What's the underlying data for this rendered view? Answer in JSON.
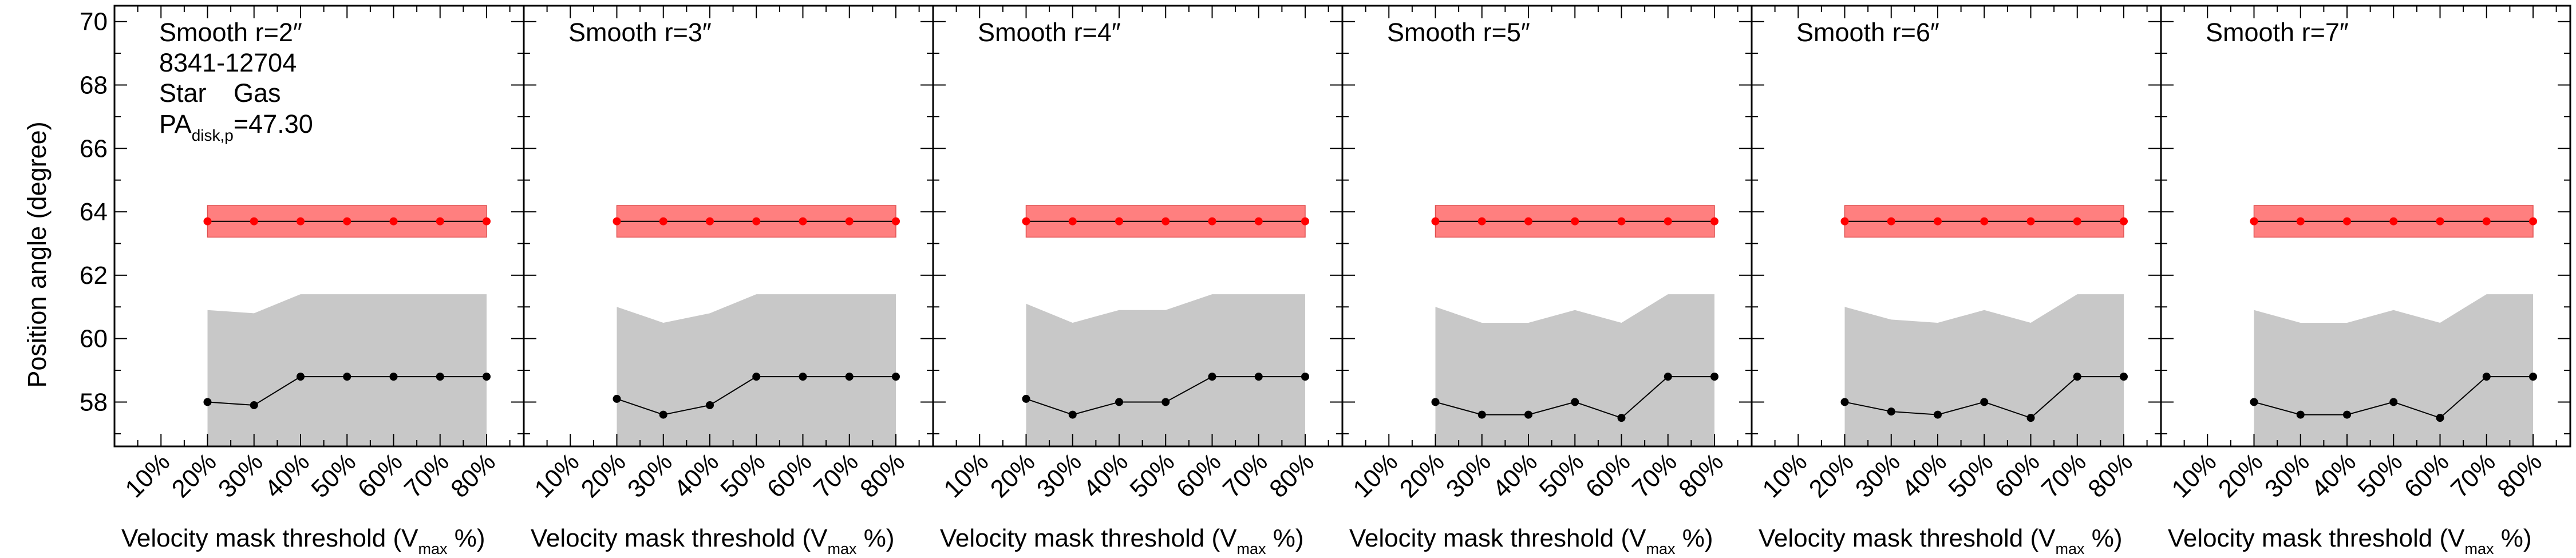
{
  "y_axis_title": "Position angle (degree)",
  "x_axis_title": {
    "prefix": "Velocity mask threshold (V",
    "subscript": "max",
    "suffix": " %)"
  },
  "galaxy_id": "8341-12704",
  "legend": {
    "star": "Star",
    "gas": "Gas"
  },
  "pa_disk": {
    "prefix": "PA",
    "subscript": "disk,p",
    "value": "=47.30"
  },
  "colors": {
    "star": "#000000",
    "gas": "#ff0000",
    "gas_band": "#ff7f7f",
    "star_band": "#c8c8c8",
    "frame": "#000000"
  },
  "chart_data": {
    "type": "line",
    "ylim": [
      56.6,
      70.5
    ],
    "y_ticks": [
      58,
      60,
      62,
      64,
      66,
      68,
      70
    ],
    "x_tick_labels": [
      "10%",
      "20%",
      "30%",
      "40%",
      "50%",
      "60%",
      "70%",
      "80%"
    ],
    "x_data": [
      20,
      30,
      40,
      50,
      60,
      70,
      80
    ],
    "panels": [
      {
        "label": "Smooth r=2″",
        "star": [
          58.0,
          57.9,
          58.8,
          58.8,
          58.8,
          58.8,
          58.8
        ],
        "star_band_upper": [
          60.9,
          60.8,
          61.4,
          61.4,
          61.4,
          61.4,
          61.4
        ],
        "gas": [
          63.7,
          63.7,
          63.7,
          63.7,
          63.7,
          63.7,
          63.7
        ],
        "gas_band": [
          63.2,
          64.2
        ]
      },
      {
        "label": "Smooth r=3″",
        "star": [
          58.1,
          57.6,
          57.9,
          58.8,
          58.8,
          58.8,
          58.8
        ],
        "star_band_upper": [
          61.0,
          60.5,
          60.8,
          61.4,
          61.4,
          61.4,
          61.4
        ],
        "gas": [
          63.7,
          63.7,
          63.7,
          63.7,
          63.7,
          63.7,
          63.7
        ],
        "gas_band": [
          63.2,
          64.2
        ]
      },
      {
        "label": "Smooth r=4″",
        "star": [
          58.1,
          57.6,
          58.0,
          58.0,
          58.8,
          58.8,
          58.8
        ],
        "star_band_upper": [
          61.1,
          60.5,
          60.9,
          60.9,
          61.4,
          61.4,
          61.4
        ],
        "gas": [
          63.7,
          63.7,
          63.7,
          63.7,
          63.7,
          63.7,
          63.7
        ],
        "gas_band": [
          63.2,
          64.2
        ]
      },
      {
        "label": "Smooth r=5″",
        "star": [
          58.0,
          57.6,
          57.6,
          58.0,
          57.5,
          58.8,
          58.8
        ],
        "star_band_upper": [
          61.0,
          60.5,
          60.5,
          60.9,
          60.5,
          61.4,
          61.4
        ],
        "gas": [
          63.7,
          63.7,
          63.7,
          63.7,
          63.7,
          63.7,
          63.7
        ],
        "gas_band": [
          63.2,
          64.2
        ]
      },
      {
        "label": "Smooth r=6″",
        "star": [
          58.0,
          57.7,
          57.6,
          58.0,
          57.5,
          58.8,
          58.8
        ],
        "star_band_upper": [
          61.0,
          60.6,
          60.5,
          60.9,
          60.5,
          61.4,
          61.4
        ],
        "gas": [
          63.7,
          63.7,
          63.7,
          63.7,
          63.7,
          63.7,
          63.7
        ],
        "gas_band": [
          63.2,
          64.2
        ]
      },
      {
        "label": "Smooth r=7″",
        "star": [
          58.0,
          57.6,
          57.6,
          58.0,
          57.5,
          58.8,
          58.8
        ],
        "star_band_upper": [
          60.9,
          60.5,
          60.5,
          60.9,
          60.5,
          61.4,
          61.4
        ],
        "gas": [
          63.7,
          63.7,
          63.7,
          63.7,
          63.7,
          63.7,
          63.7
        ],
        "gas_band": [
          63.2,
          64.2
        ]
      }
    ]
  }
}
